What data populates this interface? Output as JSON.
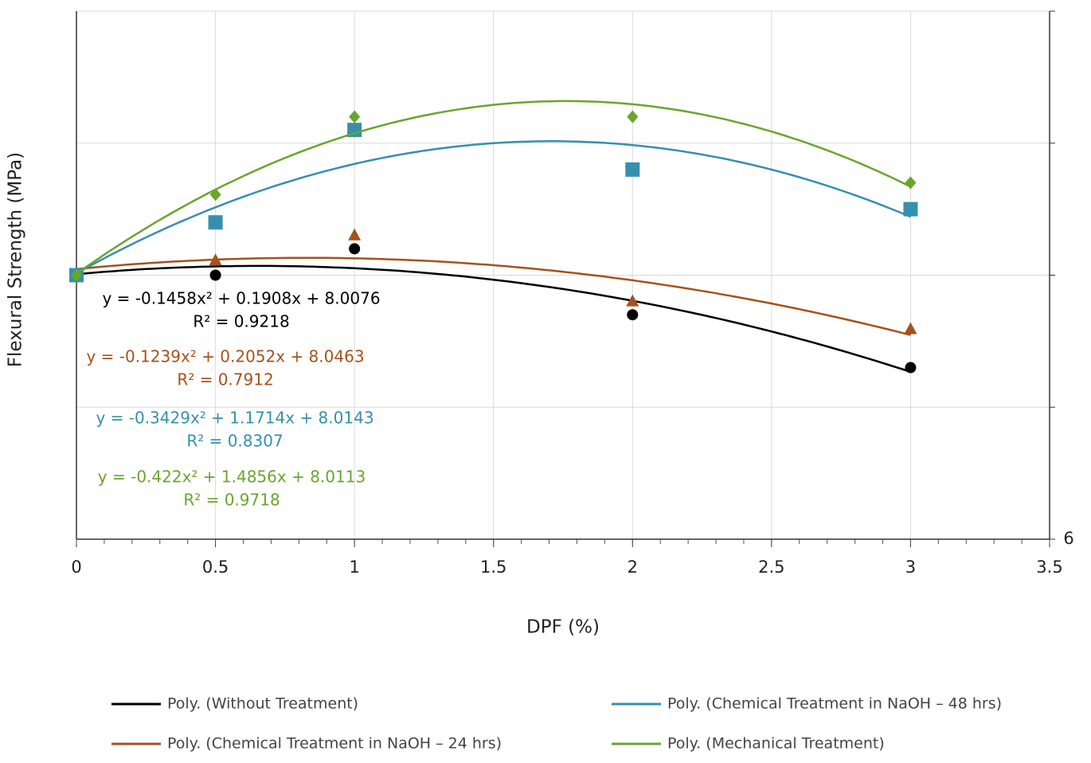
{
  "chart_data": {
    "type": "scatter",
    "x_label": "DPF (%)",
    "y_label": "Flexural Strength (MPa)",
    "xlim": [
      0,
      3.5
    ],
    "xticks": [
      0,
      0.5,
      1,
      1.5,
      2,
      2.5,
      3,
      3.5
    ],
    "x_minor_step": 0.1,
    "ylim": [
      6,
      10
    ],
    "yticks": [
      6
    ],
    "ygridlines": [
      6,
      7,
      8,
      9,
      10
    ],
    "y_axis_side": "right",
    "grid": true,
    "series": [
      {
        "name": "Poly. (Without Treatment)",
        "color": "#000000",
        "marker": "circle",
        "x": [
          0,
          0.5,
          1,
          2,
          3
        ],
        "values": [
          8.0,
          8.0,
          8.2,
          7.7,
          7.3
        ],
        "trend": {
          "coefficients": [
            -0.1458,
            0.1908,
            8.0076
          ],
          "equation": "y = -0.1458x² + 0.1908x + 8.0076",
          "r2": "R² = 0.9218"
        }
      },
      {
        "name": "Poly. (Chemical  Treatment in NaOH – 24 hrs)",
        "color": "#a5521c",
        "marker": "triangle",
        "x": [
          0,
          0.5,
          1,
          2,
          3
        ],
        "values": [
          8.0,
          8.11,
          8.3,
          7.8,
          7.59
        ],
        "trend": {
          "coefficients": [
            -0.1239,
            0.2052,
            8.0463
          ],
          "equation": "y = -0.1239x² + 0.2052x + 8.0463",
          "r2": "R² = 0.7912"
        }
      },
      {
        "name": "Poly. (Chemical Treatment in NaOH – 48 hrs)",
        "color": "#3590ae",
        "marker": "square",
        "x": [
          0,
          0.5,
          1,
          2,
          3
        ],
        "values": [
          8.0,
          8.4,
          9.1,
          8.8,
          8.5
        ],
        "trend": {
          "coefficients": [
            -0.3429,
            1.1714,
            8.0143
          ],
          "equation": "y = -0.3429x² + 1.1714x + 8.0143",
          "r2": "R² = 0.8307"
        }
      },
      {
        "name": "Poly. (Mechanical Treatment)",
        "color": "#6aa52c",
        "marker": "diamond",
        "x": [
          0,
          0.5,
          1,
          2,
          3
        ],
        "values": [
          8.0,
          8.61,
          9.2,
          9.2,
          8.7
        ],
        "trend": {
          "coefficients": [
            -0.422,
            1.4856,
            8.0113
          ],
          "equation": "y = -0.422x² + 1.4856x + 8.0113",
          "r2": "R² = 0.9718"
        }
      }
    ]
  }
}
